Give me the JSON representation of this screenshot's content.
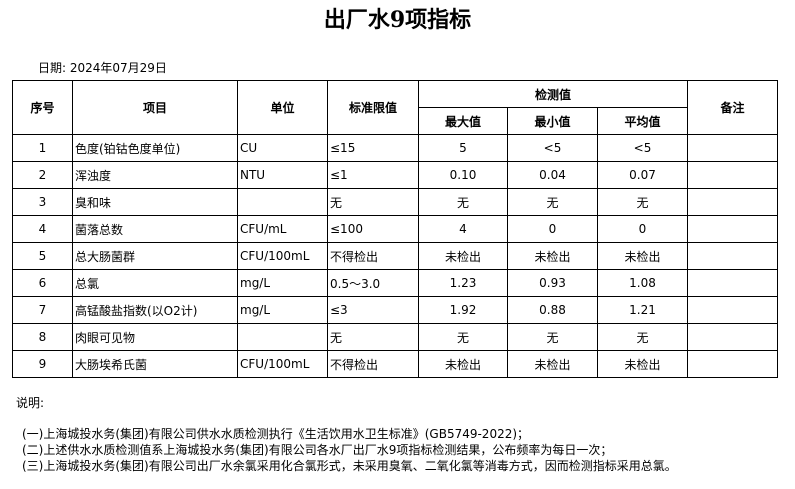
{
  "title": "出厂水9项指标",
  "date": "日期: 2024年07月29日",
  "headers": {
    "no": "序号",
    "item": "项目",
    "unit": "单位",
    "limit": "标准限值",
    "measured": "检测值",
    "max": "最大值",
    "min": "最小值",
    "avg": "平均值",
    "remark": "备注"
  },
  "rows": [
    {
      "no": "1",
      "item": "色度(铂钴色度单位)",
      "unit": "CU",
      "limit": "≤15",
      "max": "5",
      "min": "<5",
      "avg": "<5",
      "remark": ""
    },
    {
      "no": "2",
      "item": "浑浊度",
      "unit": "NTU",
      "limit": "≤1",
      "max": "0.10",
      "min": "0.04",
      "avg": "0.07",
      "remark": ""
    },
    {
      "no": "3",
      "item": "臭和味",
      "unit": "",
      "limit": "无",
      "max": "无",
      "min": "无",
      "avg": "无",
      "remark": ""
    },
    {
      "no": "4",
      "item": "菌落总数",
      "unit": "CFU/mL",
      "limit": "≤100",
      "max": "4",
      "min": "0",
      "avg": "0",
      "remark": ""
    },
    {
      "no": "5",
      "item": "总大肠菌群",
      "unit": "CFU/100mL",
      "limit": "不得检出",
      "max": "未检出",
      "min": "未检出",
      "avg": "未检出",
      "remark": ""
    },
    {
      "no": "6",
      "item": "总氯",
      "unit": "mg/L",
      "limit": "0.5～3.0",
      "max": "1.23",
      "min": "0.93",
      "avg": "1.08",
      "remark": ""
    },
    {
      "no": "7",
      "item": "高锰酸盐指数(以O2计)",
      "unit": "mg/L",
      "limit": "≤3",
      "max": "1.92",
      "min": "0.88",
      "avg": "1.21",
      "remark": ""
    },
    {
      "no": "8",
      "item": "肉眼可见物",
      "unit": "",
      "limit": "无",
      "max": "无",
      "min": "无",
      "avg": "无",
      "remark": ""
    },
    {
      "no": "9",
      "item": "大肠埃希氏菌",
      "unit": "CFU/100mL",
      "limit": "不得检出",
      "max": "未检出",
      "min": "未检出",
      "avg": "未检出",
      "remark": ""
    }
  ],
  "notes": {
    "heading": "说明:",
    "lines": [
      "(一)上海城投水务(集团)有限公司供水水质检测执行《生活饮用水卫生标准》(GB5749-2022)；",
      "(二)上述供水水质检测值系上海城投水务(集团)有限公司各水厂出厂水9项指标检测结果，公布频率为每日一次；",
      "(三)上海城投水务(集团)有限公司出厂水余氯采用化合氯形式，未采用臭氧、二氧化氯等消毒方式，因而检测指标采用总氯。"
    ]
  }
}
